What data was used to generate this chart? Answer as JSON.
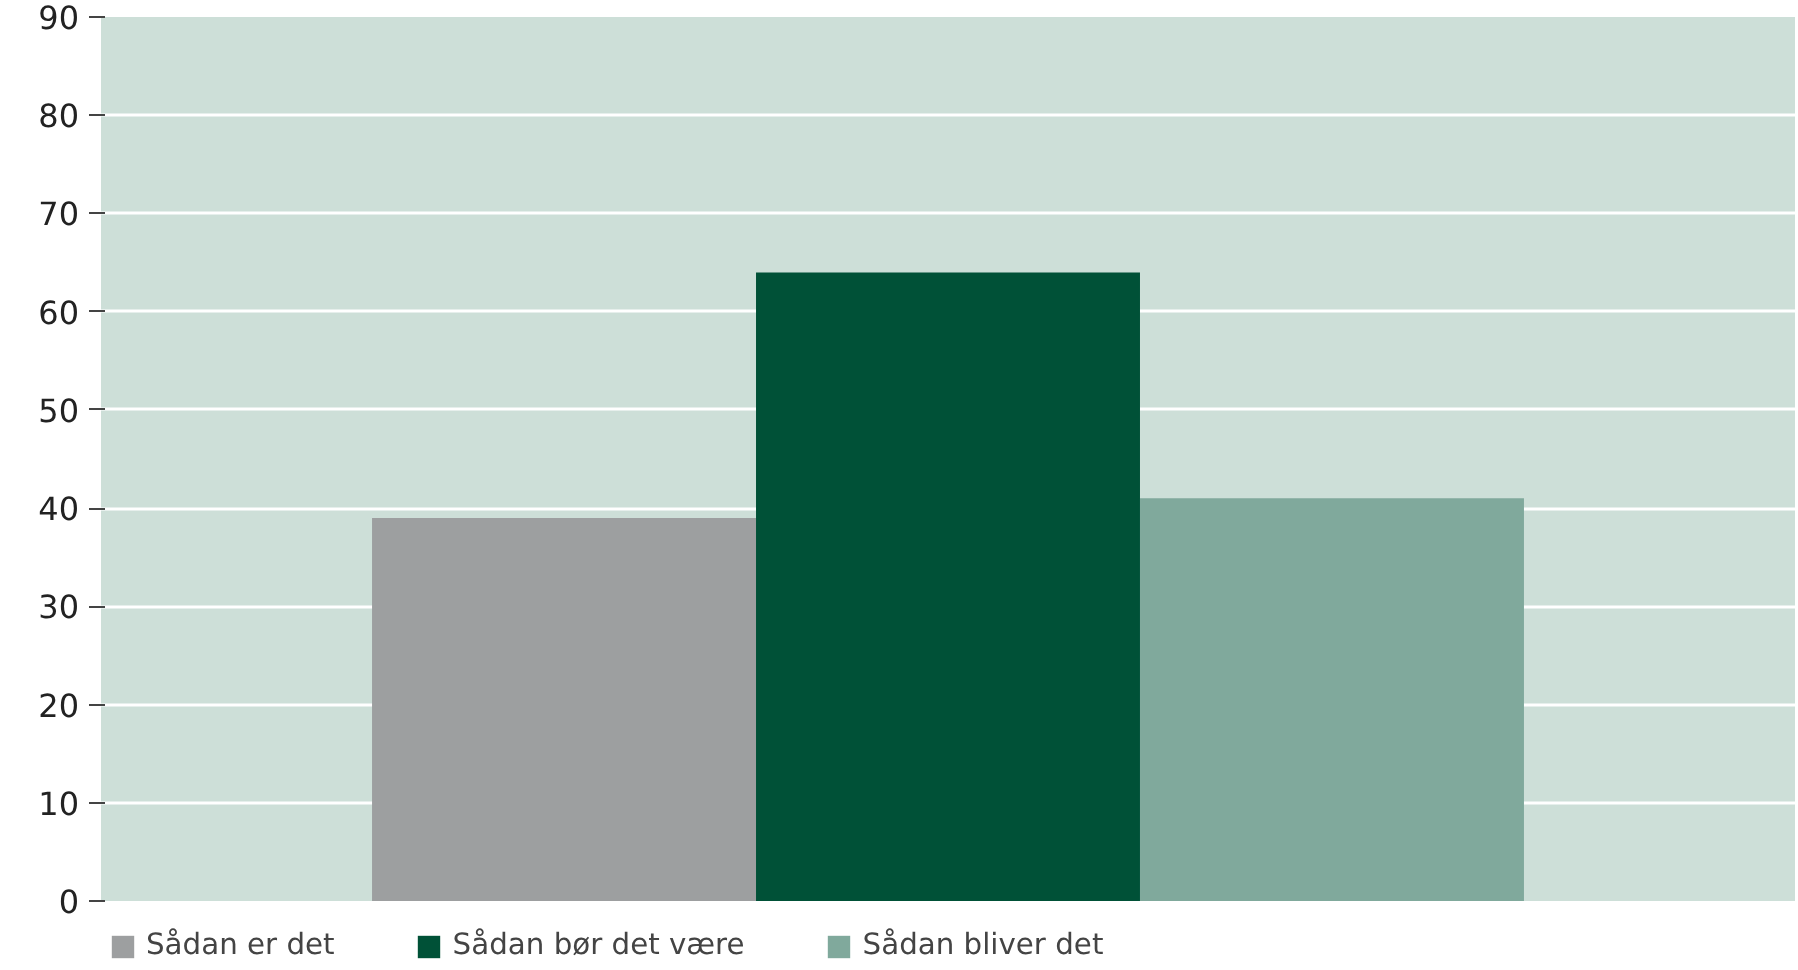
{
  "chart_data": {
    "type": "bar",
    "categories": [
      null
    ],
    "series": [
      {
        "name": "Sådan er det",
        "color": "#9d9fa0",
        "values": [
          39
        ]
      },
      {
        "name": "Sådan bør det være",
        "color": "#005137",
        "values": [
          64
        ]
      },
      {
        "name": "Sådan bliver det",
        "color": "#80a99c",
        "values": [
          41
        ]
      }
    ],
    "ylim": [
      0,
      90
    ],
    "yticks": [
      0,
      10,
      20,
      30,
      40,
      50,
      60,
      70,
      80,
      90
    ],
    "grid": "y",
    "legend": "bottom"
  }
}
